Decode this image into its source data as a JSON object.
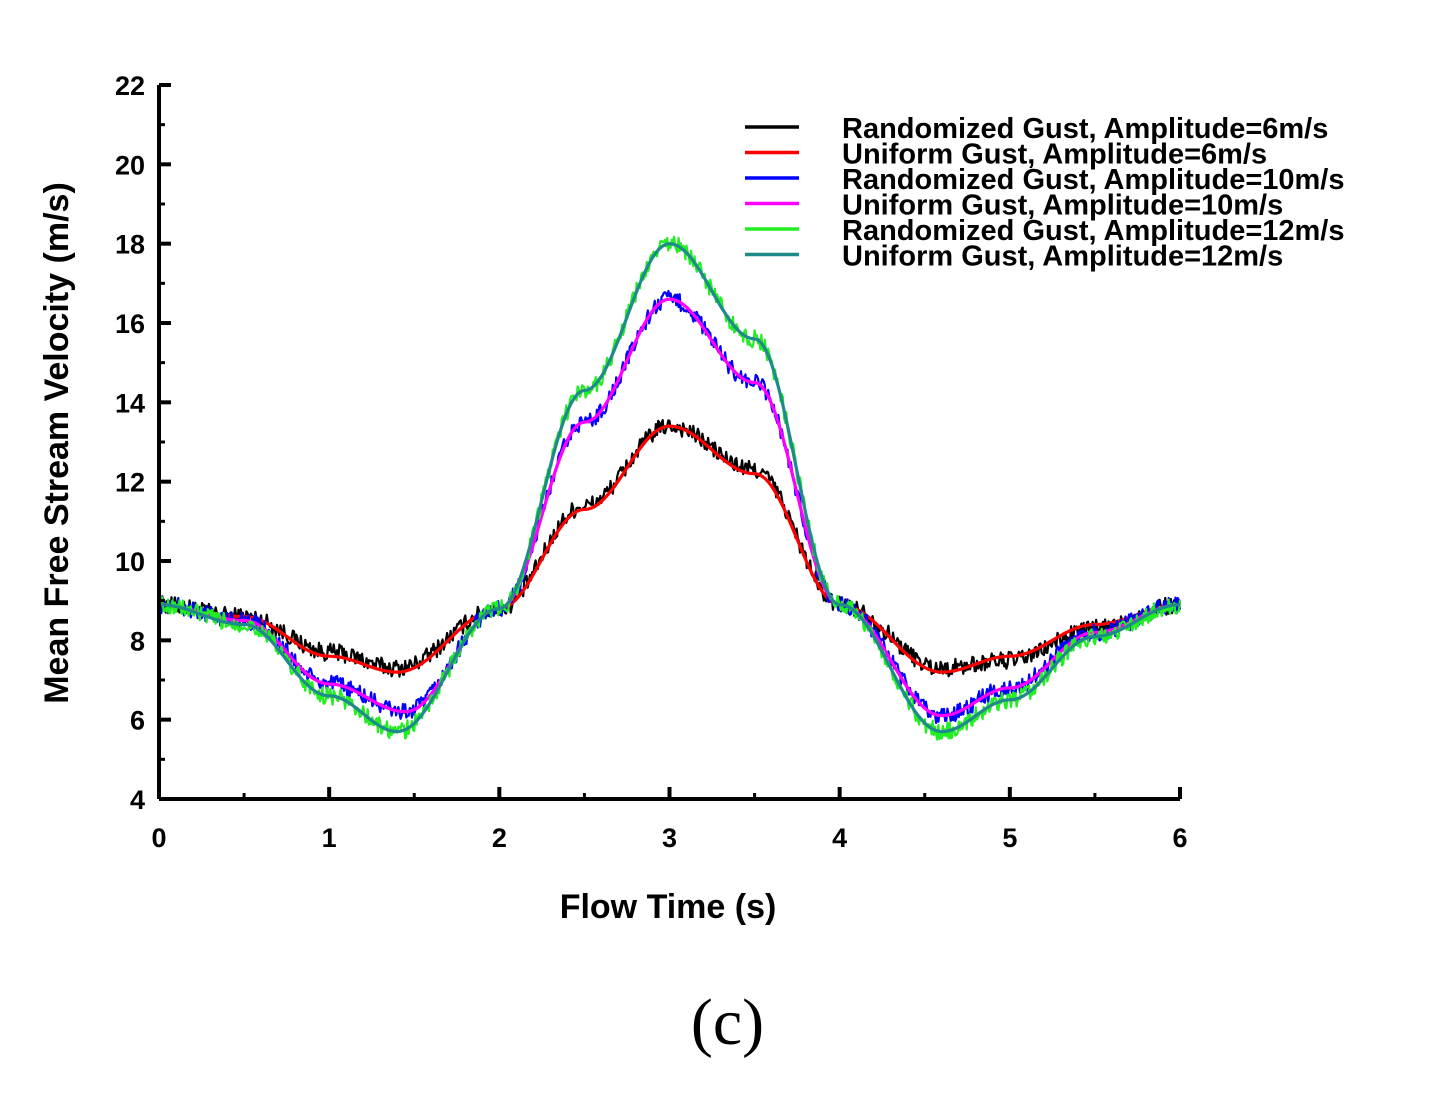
{
  "caption": "(c)",
  "chart_data": {
    "type": "line",
    "title": "",
    "xlabel": "Flow Time (s)",
    "ylabel": "Mean Free Stream Velocity (m/s)",
    "xlim": [
      0,
      6
    ],
    "ylim": [
      4,
      22
    ],
    "xticks": [
      0,
      1,
      2,
      3,
      4,
      5,
      6
    ],
    "yticks": [
      4,
      6,
      8,
      10,
      12,
      14,
      16,
      18,
      20,
      22
    ],
    "grid": false,
    "legend_position": "top-right",
    "series": [
      {
        "name": "Randomized Gust, Amplitude=6m/s",
        "color": "#000000",
        "noisy": true,
        "x": [
          0,
          0.5,
          1.0,
          1.4,
          2.0,
          2.5,
          3.0,
          3.5,
          4.0,
          4.6,
          5.0,
          5.5,
          6.0
        ],
        "y": [
          8.9,
          8.6,
          7.7,
          7.3,
          8.8,
          11.4,
          13.4,
          12.3,
          8.9,
          7.3,
          7.5,
          8.3,
          8.9
        ]
      },
      {
        "name": "Uniform Gust, Amplitude=6m/s",
        "color": "#ff0000",
        "noisy": false,
        "x": [
          0,
          0.5,
          1.0,
          1.4,
          2.0,
          2.5,
          3.0,
          3.5,
          4.0,
          4.6,
          5.0,
          5.5,
          6.0
        ],
        "y": [
          8.9,
          8.6,
          7.6,
          7.2,
          8.8,
          11.3,
          13.4,
          12.2,
          8.9,
          7.2,
          7.6,
          8.4,
          8.9
        ]
      },
      {
        "name": "Randomized Gust, Amplitude=10m/s",
        "color": "#0000ff",
        "noisy": true,
        "x": [
          0,
          0.5,
          1.0,
          1.45,
          2.0,
          2.5,
          3.0,
          3.5,
          4.0,
          4.6,
          5.0,
          5.5,
          6.0
        ],
        "y": [
          8.9,
          8.5,
          6.9,
          6.2,
          8.8,
          13.5,
          16.6,
          14.5,
          8.9,
          6.1,
          6.8,
          8.2,
          8.9
        ]
      },
      {
        "name": "Uniform Gust, Amplitude=10m/s",
        "color": "#ff00ff",
        "noisy": false,
        "x": [
          0,
          0.5,
          1.0,
          1.45,
          2.0,
          2.5,
          3.0,
          3.5,
          4.0,
          4.6,
          5.0,
          5.5,
          6.0
        ],
        "y": [
          8.9,
          8.5,
          6.9,
          6.2,
          8.8,
          13.5,
          16.6,
          14.5,
          8.9,
          6.1,
          6.8,
          8.2,
          8.9
        ]
      },
      {
        "name": "Randomized Gust, Amplitude=12m/s",
        "color": "#22ee22",
        "noisy": true,
        "x": [
          0,
          0.5,
          1.0,
          1.4,
          2.0,
          2.5,
          3.0,
          3.5,
          4.0,
          4.6,
          5.0,
          5.5,
          6.0
        ],
        "y": [
          8.9,
          8.4,
          6.6,
          5.7,
          8.8,
          14.3,
          18.0,
          15.6,
          8.9,
          5.7,
          6.5,
          8.1,
          8.9
        ]
      },
      {
        "name": "Uniform Gust, Amplitude=12m/s",
        "color": "#1e8a8a",
        "noisy": false,
        "x": [
          0,
          0.5,
          1.0,
          1.4,
          2.0,
          2.5,
          3.0,
          3.5,
          4.0,
          4.6,
          5.0,
          5.5,
          6.0
        ],
        "y": [
          8.9,
          8.4,
          6.6,
          5.7,
          8.8,
          14.3,
          18.0,
          15.6,
          8.9,
          5.7,
          6.5,
          8.1,
          8.9
        ]
      }
    ]
  }
}
